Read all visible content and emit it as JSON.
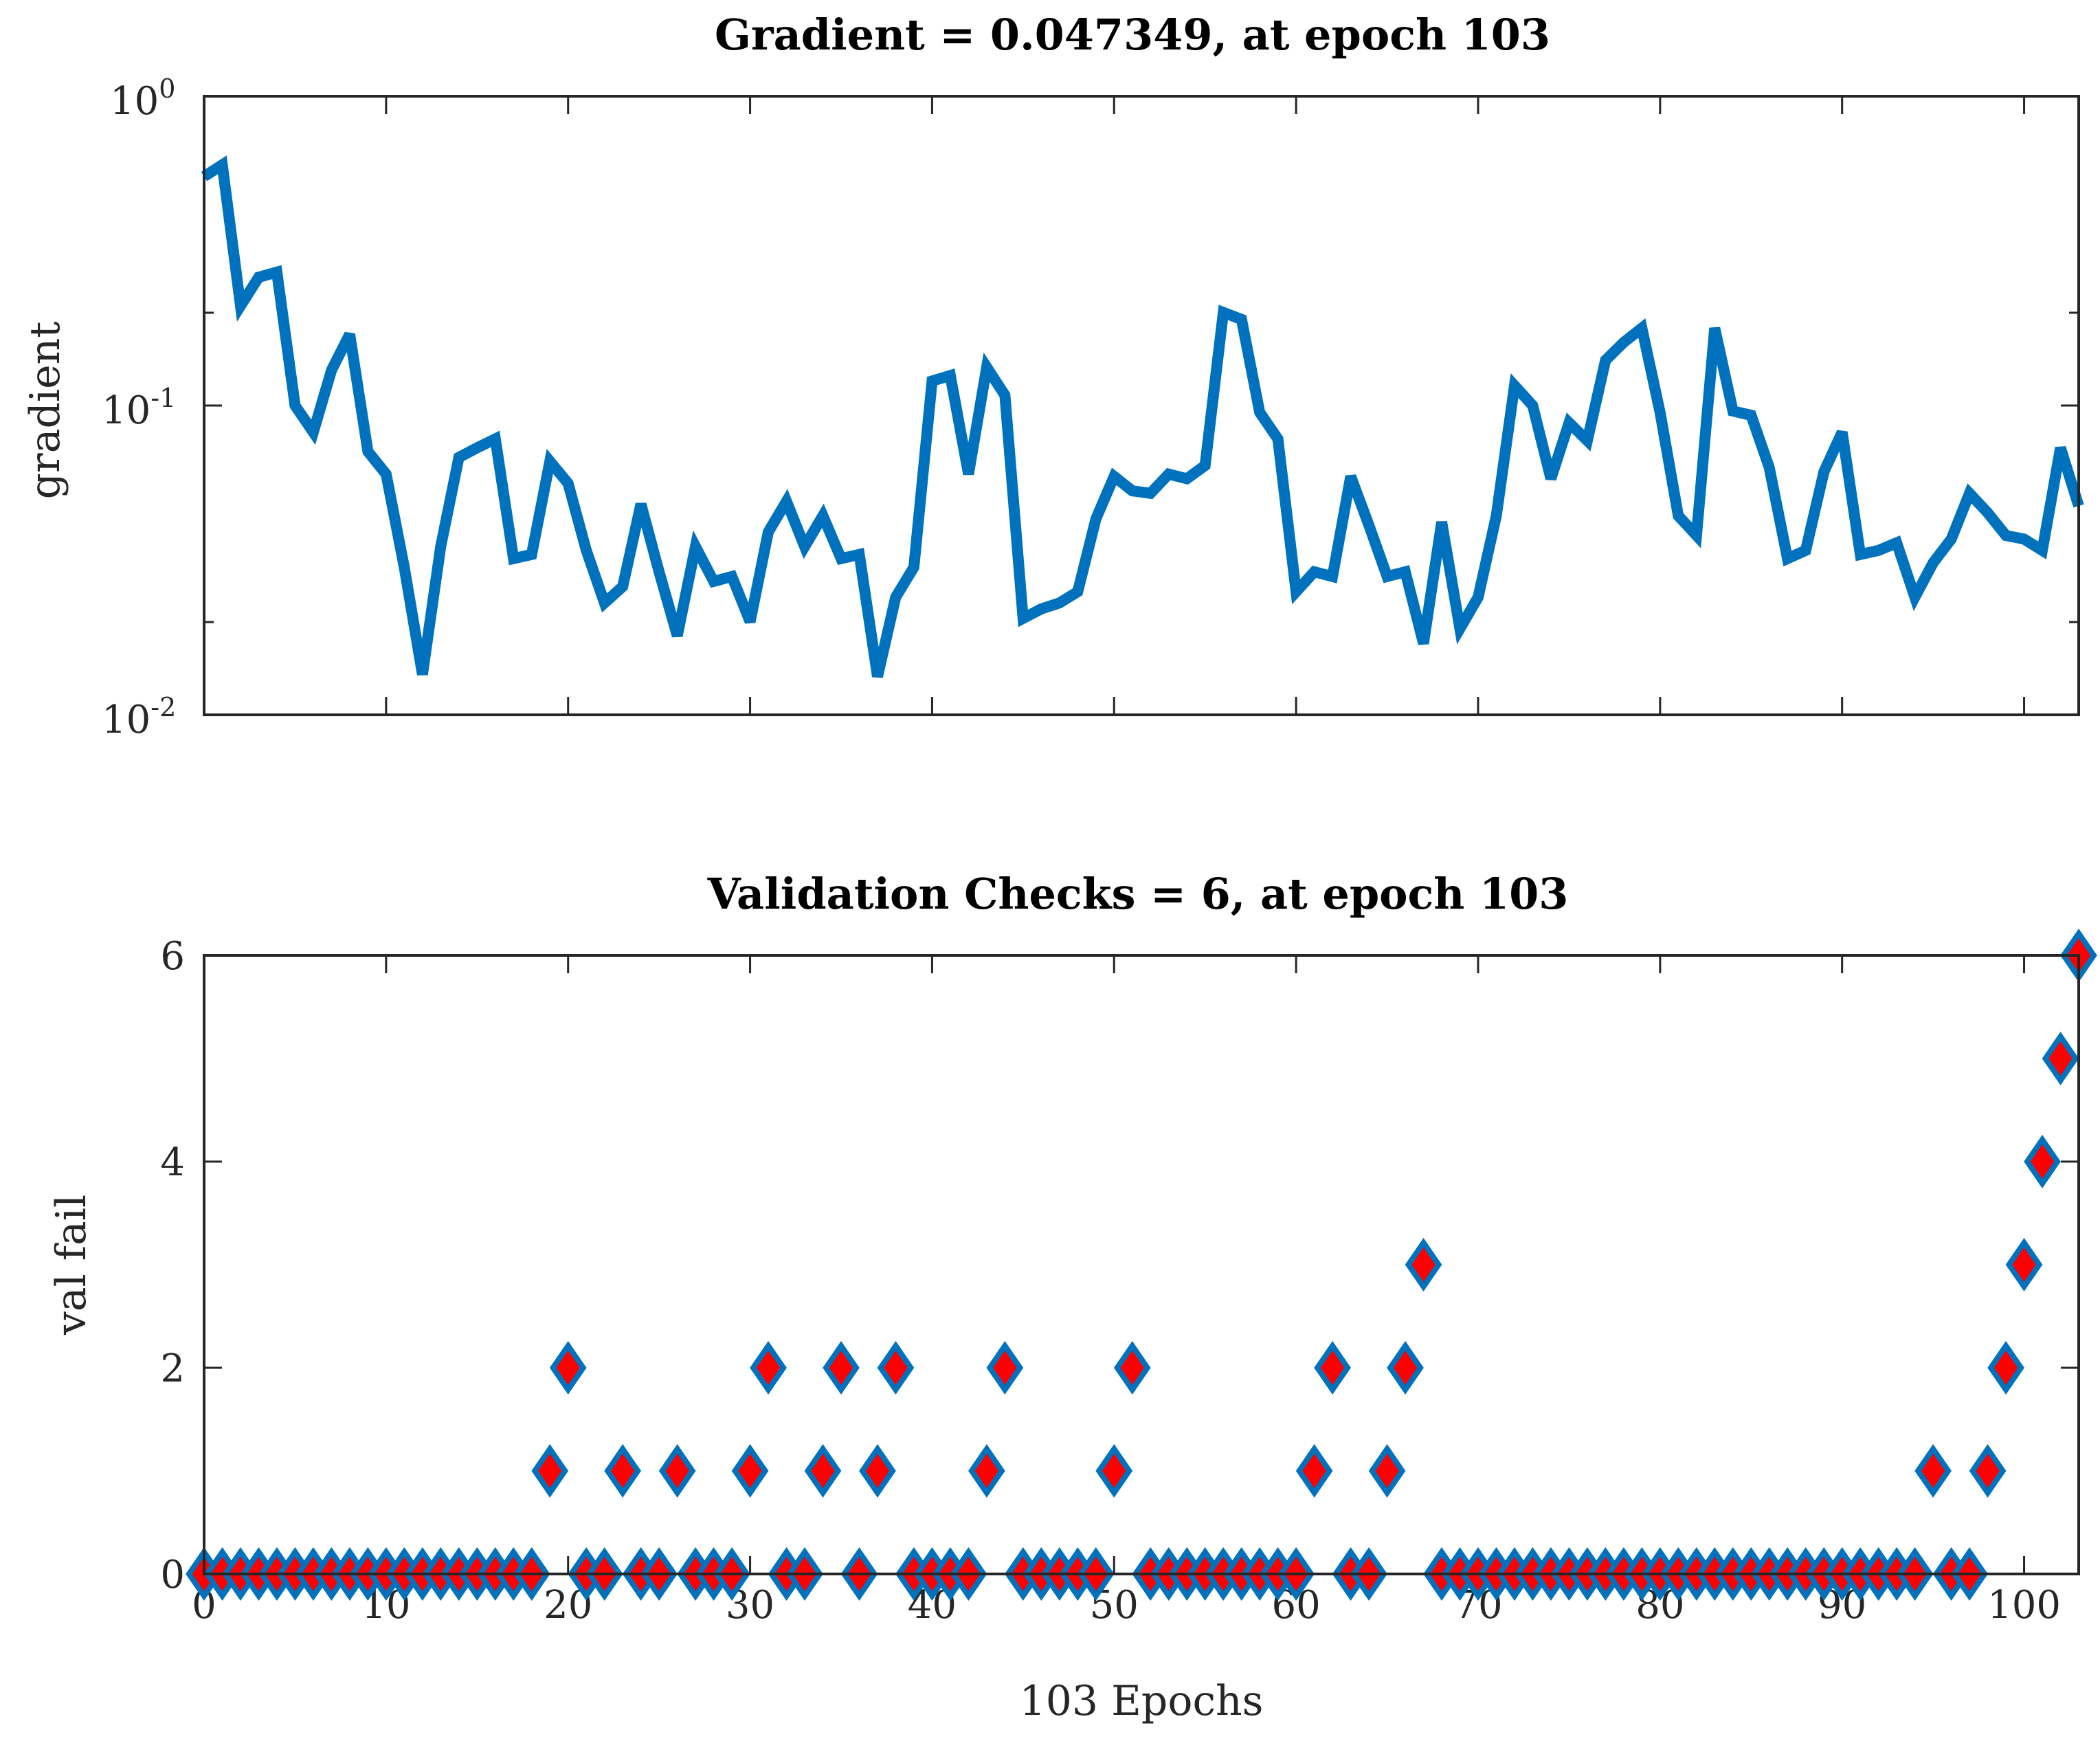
{
  "chart_data": [
    {
      "type": "line",
      "title": "Gradient = 0.047349, at epoch 103",
      "xlabel": "",
      "ylabel": "gradient",
      "yscale": "log",
      "ylim": [
        0.01,
        1
      ],
      "xlim": [
        0,
        103
      ],
      "ytick_labels": [
        {
          "base": "10",
          "exp": "-2"
        },
        {
          "base": "10",
          "exp": "-1"
        },
        {
          "base": "10",
          "exp": "0"
        }
      ],
      "color": "#0072BD",
      "series": [
        {
          "name": "gradient",
          "x": [
            0,
            1,
            2,
            3,
            4,
            5,
            6,
            7,
            8,
            9,
            10,
            11,
            12,
            13,
            14,
            15,
            16,
            17,
            18,
            19,
            20,
            21,
            22,
            23,
            24,
            25,
            26,
            27,
            28,
            29,
            30,
            31,
            32,
            33,
            34,
            35,
            36,
            37,
            38,
            39,
            40,
            41,
            42,
            43,
            44,
            45,
            46,
            47,
            48,
            49,
            50,
            51,
            52,
            53,
            54,
            55,
            56,
            57,
            58,
            59,
            60,
            61,
            62,
            63,
            64,
            65,
            66,
            67,
            68,
            69,
            70,
            71,
            72,
            73,
            74,
            75,
            76,
            77,
            78,
            79,
            80,
            81,
            82,
            83,
            84,
            85,
            86,
            87,
            88,
            89,
            90,
            91,
            92,
            93,
            94,
            95,
            96,
            97,
            98,
            99,
            100,
            101,
            102,
            103
          ],
          "values": [
            0.55,
            0.6,
            0.21,
            0.26,
            0.27,
            0.1,
            0.082,
            0.13,
            0.17,
            0.071,
            0.06,
            0.03,
            0.0135,
            0.035,
            0.068,
            0.073,
            0.078,
            0.032,
            0.033,
            0.066,
            0.056,
            0.034,
            0.023,
            0.026,
            0.048,
            0.029,
            0.018,
            0.035,
            0.027,
            0.028,
            0.02,
            0.039,
            0.049,
            0.035,
            0.044,
            0.032,
            0.033,
            0.0133,
            0.024,
            0.03,
            0.12,
            0.125,
            0.06,
            0.133,
            0.108,
            0.0205,
            0.022,
            0.023,
            0.025,
            0.043,
            0.059,
            0.053,
            0.052,
            0.06,
            0.058,
            0.064,
            0.2,
            0.19,
            0.095,
            0.078,
            0.025,
            0.029,
            0.028,
            0.059,
            0.041,
            0.028,
            0.029,
            0.017,
            0.042,
            0.019,
            0.024,
            0.044,
            0.116,
            0.1,
            0.058,
            0.088,
            0.077,
            0.14,
            0.16,
            0.178,
            0.095,
            0.044,
            0.038,
            0.178,
            0.096,
            0.093,
            0.063,
            0.032,
            0.034,
            0.061,
            0.082,
            0.033,
            0.034,
            0.036,
            0.024,
            0.031,
            0.037,
            0.052,
            0.045,
            0.038,
            0.037,
            0.034,
            0.073,
            0.047349
          ]
        }
      ]
    },
    {
      "type": "scatter",
      "title": "Validation Checks = 6, at epoch 103",
      "xlabel": "103 Epochs",
      "ylabel": "val fail",
      "xlim": [
        0,
        103
      ],
      "ylim": [
        0,
        6
      ],
      "xticks": [
        "0",
        "10",
        "20",
        "30",
        "40",
        "50",
        "60",
        "70",
        "80",
        "90",
        "100"
      ],
      "yticks": [
        "0",
        "2",
        "4",
        "6"
      ],
      "marker": "diamond",
      "marker_face": "#FF0000",
      "marker_edge": "#0072BD",
      "series": [
        {
          "name": "val fail",
          "x": [
            0,
            1,
            2,
            3,
            4,
            5,
            6,
            7,
            8,
            9,
            10,
            11,
            12,
            13,
            14,
            15,
            16,
            17,
            18,
            19,
            20,
            21,
            22,
            23,
            24,
            25,
            26,
            27,
            28,
            29,
            30,
            31,
            32,
            33,
            34,
            35,
            36,
            37,
            38,
            39,
            40,
            41,
            42,
            43,
            44,
            45,
            46,
            47,
            48,
            49,
            50,
            51,
            52,
            53,
            54,
            55,
            56,
            57,
            58,
            59,
            60,
            61,
            62,
            63,
            64,
            65,
            66,
            67,
            68,
            69,
            70,
            71,
            72,
            73,
            74,
            75,
            76,
            77,
            78,
            79,
            80,
            81,
            82,
            83,
            84,
            85,
            86,
            87,
            88,
            89,
            90,
            91,
            92,
            93,
            94,
            95,
            96,
            97,
            98,
            99,
            100,
            101,
            102,
            103
          ],
          "values": [
            0,
            0,
            0,
            0,
            0,
            0,
            0,
            0,
            0,
            0,
            0,
            0,
            0,
            0,
            0,
            0,
            0,
            0,
            0,
            1,
            2,
            0,
            0,
            1,
            0,
            0,
            1,
            0,
            0,
            0,
            1,
            2,
            0,
            0,
            1,
            2,
            0,
            1,
            2,
            0,
            0,
            0,
            0,
            1,
            2,
            0,
            0,
            0,
            0,
            0,
            1,
            2,
            0,
            0,
            0,
            0,
            0,
            0,
            0,
            0,
            0,
            1,
            2,
            0,
            0,
            1,
            2,
            3,
            0,
            0,
            0,
            0,
            0,
            0,
            0,
            0,
            0,
            0,
            0,
            0,
            0,
            0,
            0,
            0,
            0,
            0,
            0,
            0,
            0,
            0,
            0,
            0,
            0,
            0,
            0,
            1,
            0,
            0,
            1,
            2,
            3,
            4,
            5,
            6
          ]
        }
      ]
    }
  ]
}
